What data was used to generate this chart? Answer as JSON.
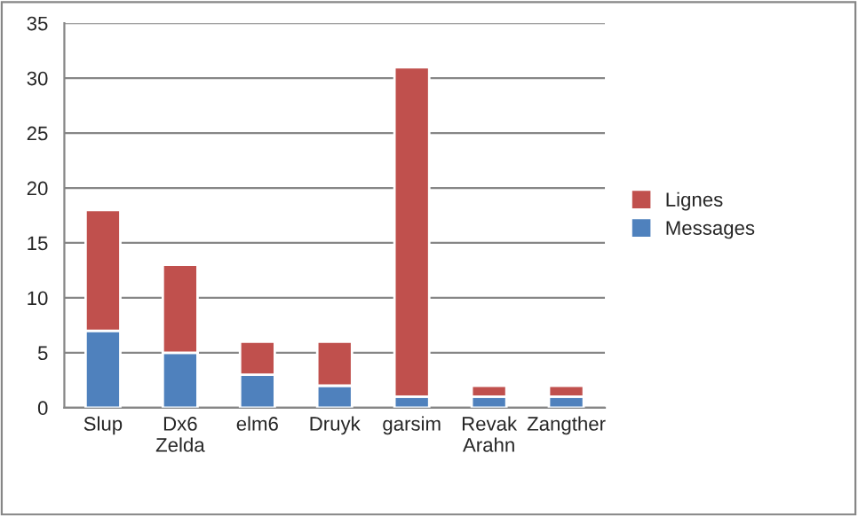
{
  "chart_data": {
    "type": "bar",
    "stacked": true,
    "categories": [
      "Slup",
      "Dx6 Zelda",
      "elm6",
      "Druyk",
      "garsim",
      "Revak Arahn",
      "Zangther"
    ],
    "series": [
      {
        "name": "Messages",
        "color": "#4f81bd",
        "values": [
          7,
          5,
          3,
          2,
          1,
          1,
          1
        ]
      },
      {
        "name": "Lignes",
        "color": "#c0504d",
        "values": [
          11,
          8,
          3,
          4,
          30,
          1,
          1
        ]
      }
    ],
    "ylim": [
      0,
      35
    ],
    "yticks": [
      0,
      5,
      10,
      15,
      20,
      25,
      30,
      35
    ],
    "grid": "y",
    "legend": "right"
  }
}
